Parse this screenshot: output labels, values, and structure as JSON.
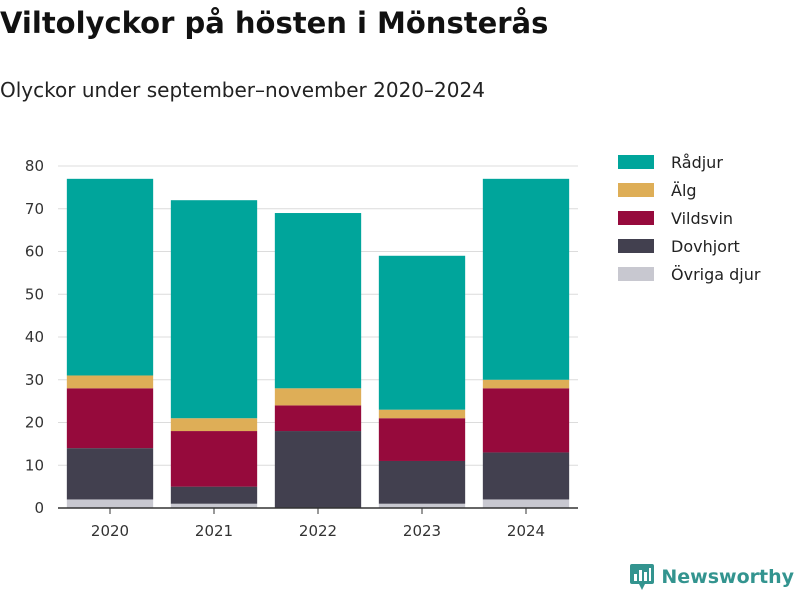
{
  "title": "Viltolyckor på hösten i Mönsterås",
  "subtitle": "Olyckor under september–november 2020–2024",
  "brand": {
    "name": "Newsworthy",
    "icon": "newsworthy-logo-icon",
    "color": "#33948f"
  },
  "chart_data": {
    "type": "bar",
    "stacked": true,
    "title": "Viltolyckor på hösten i Mönsterås",
    "subtitle": "Olyckor under september–november 2020–2024",
    "xlabel": "",
    "ylabel": "",
    "ylim": [
      0,
      80
    ],
    "yticks": [
      0,
      10,
      20,
      30,
      40,
      50,
      60,
      70,
      80
    ],
    "grid": true,
    "legend_position": "right",
    "categories": [
      "2020",
      "2021",
      "2022",
      "2023",
      "2024"
    ],
    "series": [
      {
        "name": "Övriga djur",
        "color": "#c8c8d0",
        "values": [
          2,
          1,
          0,
          1,
          2
        ]
      },
      {
        "name": "Dovhjort",
        "color": "#42404f",
        "values": [
          12,
          4,
          18,
          10,
          11
        ]
      },
      {
        "name": "Vildsvin",
        "color": "#960a3c",
        "values": [
          14,
          13,
          6,
          10,
          15
        ]
      },
      {
        "name": "Älg",
        "color": "#deae57",
        "values": [
          3,
          3,
          4,
          2,
          2
        ]
      },
      {
        "name": "Rådjur",
        "color": "#00a59b",
        "values": [
          46,
          51,
          41,
          36,
          47
        ]
      }
    ],
    "legend_order": [
      "Rådjur",
      "Älg",
      "Vildsvin",
      "Dovhjort",
      "Övriga djur"
    ]
  }
}
